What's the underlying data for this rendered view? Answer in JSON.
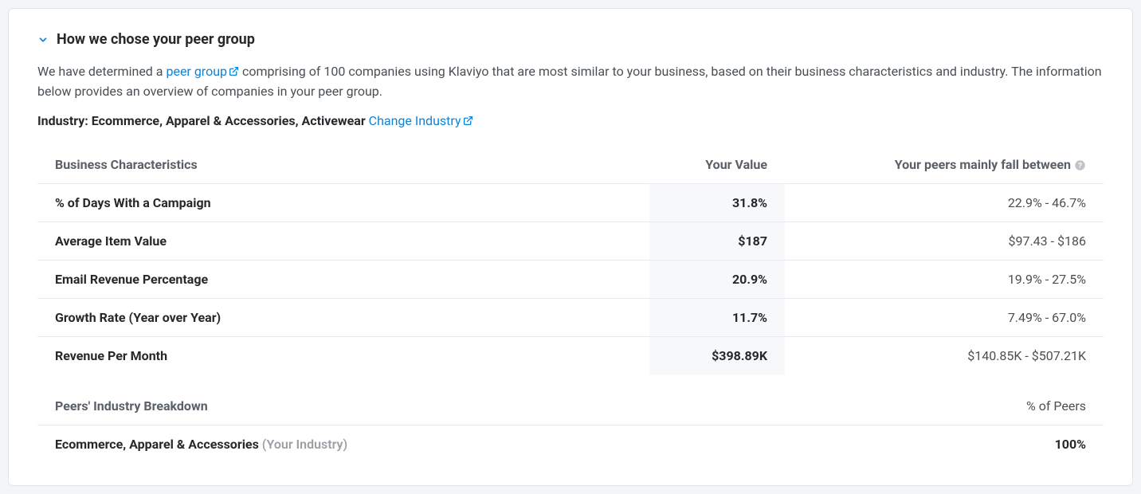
{
  "header": {
    "title": "How we chose your peer group"
  },
  "description": {
    "text_before": "We have determined a ",
    "link_text": "peer group",
    "text_after": " comprising of 100 companies using Klaviyo that are most similar to your business, based on their business characteristics and industry. The information below provides an overview of companies in your peer group."
  },
  "industry": {
    "label": "Industry: ",
    "value": "Ecommerce, Apparel & Accessories, Activewear",
    "change_link": "Change Industry"
  },
  "table": {
    "columns": {
      "characteristics": "Business Characteristics",
      "your_value": "Your Value",
      "peers_range": "Your peers mainly fall between"
    },
    "rows": [
      {
        "name": "% of Days With a Campaign",
        "value": "31.8%",
        "range": "22.9% - 46.7%"
      },
      {
        "name": "Average Item Value",
        "value": "$187",
        "range": "$97.43 - $186"
      },
      {
        "name": "Email Revenue Percentage",
        "value": "20.9%",
        "range": "19.9% - 27.5%"
      },
      {
        "name": "Growth Rate (Year over Year)",
        "value": "11.7%",
        "range": "7.49% - 67.0%"
      },
      {
        "name": "Revenue Per Month",
        "value": "$398.89K",
        "range": "$140.85K - $507.21K"
      }
    ]
  },
  "breakdown": {
    "columns": {
      "industry": "Peers' Industry Breakdown",
      "percent": "% of Peers"
    },
    "rows": [
      {
        "name": "Ecommerce, Apparel & Accessories",
        "note": "(Your Industry)",
        "percent": "100%"
      }
    ]
  },
  "colors": {
    "link": "#0f83d6",
    "text_primary": "#26292c",
    "text_secondary": "#5a6067",
    "text_muted": "#9aa0a6",
    "border": "#e8eaed",
    "highlight_bg": "#f6f8fa",
    "page_bg": "#f4f5f7",
    "card_bg": "#ffffff"
  }
}
